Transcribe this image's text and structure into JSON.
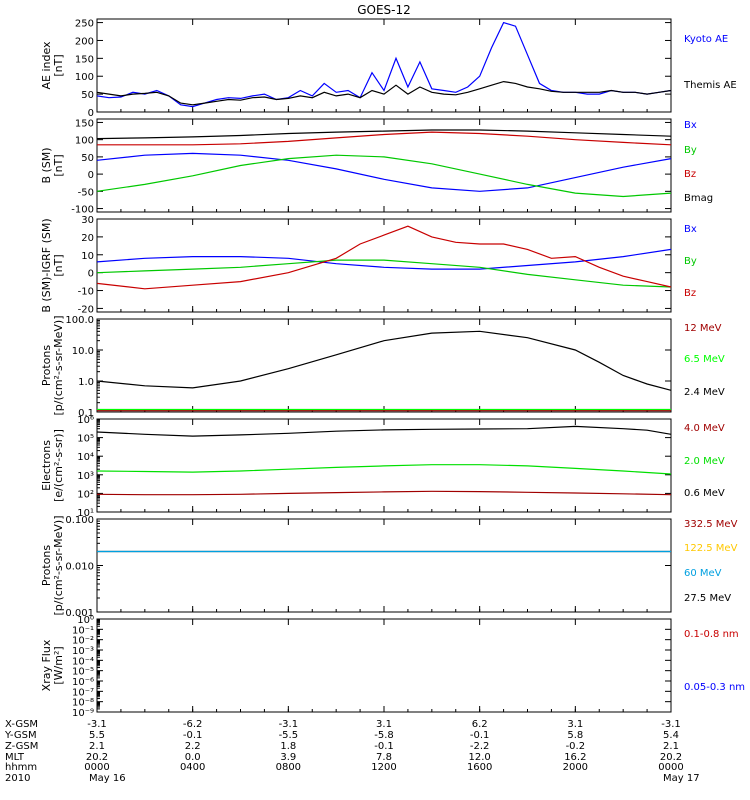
{
  "title": "GOES-12",
  "chart_data": [
    {
      "id": "ae",
      "type": "line",
      "ylabel": [
        "AE index",
        "[nT]"
      ],
      "yscale": "linear",
      "ylim": [
        0,
        260
      ],
      "yticks": [
        0,
        50,
        100,
        150,
        200,
        250
      ],
      "series": [
        {
          "name": "Kyoto AE",
          "color": "#0000ff",
          "x": [
            0,
            0.5,
            1,
            1.5,
            2,
            2.5,
            3,
            3.5,
            4,
            4.5,
            5,
            5.5,
            6,
            6.5,
            7,
            7.5,
            8,
            8.5,
            9,
            9.5,
            10,
            10.5,
            11,
            11.5,
            12,
            12.5,
            13,
            13.5,
            14,
            14.5,
            15,
            15.5,
            16,
            16.5,
            17,
            17.5,
            18,
            18.5,
            19,
            19.5,
            20,
            20.5,
            21,
            21.5,
            22,
            22.5,
            23,
            23.5,
            24
          ],
          "y": [
            45,
            40,
            42,
            55,
            50,
            60,
            45,
            20,
            15,
            25,
            35,
            40,
            38,
            45,
            50,
            35,
            40,
            60,
            45,
            80,
            55,
            60,
            40,
            110,
            60,
            150,
            70,
            140,
            65,
            60,
            55,
            70,
            100,
            180,
            250,
            240,
            160,
            80,
            60,
            55,
            55,
            50,
            50,
            60,
            55,
            55,
            50,
            55,
            60
          ]
        },
        {
          "name": "Themis AE",
          "color": "#000000",
          "x": [
            0,
            0.5,
            1,
            1.5,
            2,
            2.5,
            3,
            3.5,
            4,
            4.5,
            5,
            5.5,
            6,
            6.5,
            7,
            7.5,
            8,
            8.5,
            9,
            9.5,
            10,
            10.5,
            11,
            11.5,
            12,
            12.5,
            13,
            13.5,
            14,
            14.5,
            15,
            15.5,
            16,
            16.5,
            17,
            17.5,
            18,
            18.5,
            19,
            19.5,
            20,
            20.5,
            21,
            21.5,
            22,
            22.5,
            23,
            23.5,
            24
          ],
          "y": [
            55,
            50,
            45,
            50,
            52,
            55,
            45,
            25,
            20,
            25,
            30,
            35,
            33,
            40,
            42,
            35,
            38,
            45,
            40,
            55,
            45,
            50,
            40,
            60,
            50,
            75,
            50,
            70,
            55,
            50,
            48,
            55,
            65,
            75,
            85,
            80,
            70,
            65,
            58,
            55,
            55,
            55,
            55,
            60,
            55,
            55,
            50,
            55,
            60
          ]
        }
      ],
      "legend": [
        {
          "text": "Kyoto AE",
          "color": "#0000ff"
        },
        {
          "text": "Themis AE",
          "color": "#000000"
        }
      ]
    },
    {
      "id": "bsm",
      "type": "line",
      "ylabel": [
        "B (SM)",
        "[nT]"
      ],
      "yscale": "linear",
      "ylim": [
        -110,
        160
      ],
      "yticks": [
        -100,
        -50,
        0,
        50,
        100,
        150
      ],
      "series": [
        {
          "name": "Bx",
          "color": "#0000ff",
          "x": [
            0,
            2,
            4,
            6,
            8,
            10,
            12,
            14,
            16,
            18,
            20,
            22,
            24
          ],
          "y": [
            40,
            55,
            60,
            55,
            40,
            15,
            -15,
            -40,
            -50,
            -40,
            -10,
            20,
            45
          ]
        },
        {
          "name": "By",
          "color": "#00c800",
          "x": [
            0,
            2,
            4,
            6,
            8,
            10,
            12,
            14,
            16,
            18,
            20,
            22,
            24
          ],
          "y": [
            -50,
            -30,
            -5,
            25,
            45,
            55,
            50,
            30,
            0,
            -30,
            -55,
            -65,
            -55
          ]
        },
        {
          "name": "Bz",
          "color": "#c80000",
          "x": [
            0,
            2,
            4,
            6,
            8,
            10,
            12,
            14,
            16,
            18,
            20,
            22,
            24
          ],
          "y": [
            85,
            85,
            85,
            88,
            95,
            105,
            115,
            122,
            118,
            110,
            100,
            92,
            85
          ]
        },
        {
          "name": "Bmag",
          "color": "#000000",
          "x": [
            0,
            2,
            4,
            6,
            8,
            10,
            12,
            14,
            16,
            18,
            20,
            22,
            24
          ],
          "y": [
            103,
            105,
            108,
            112,
            118,
            122,
            125,
            128,
            128,
            125,
            120,
            115,
            110
          ]
        }
      ],
      "legend": [
        {
          "text": "Bx",
          "color": "#0000ff"
        },
        {
          "text": "By",
          "color": "#00c800"
        },
        {
          "text": "Bz",
          "color": "#c80000"
        },
        {
          "text": "Bmag",
          "color": "#000000"
        }
      ]
    },
    {
      "id": "bsmigrf",
      "type": "line",
      "ylabel": [
        "B (SM)-IGRF (SM)",
        "[nT]"
      ],
      "yscale": "linear",
      "ylim": [
        -22,
        30
      ],
      "yticks": [
        -20,
        -10,
        0,
        10,
        20,
        30
      ],
      "series": [
        {
          "name": "Bx",
          "color": "#0000ff",
          "x": [
            0,
            2,
            4,
            6,
            8,
            10,
            12,
            14,
            16,
            18,
            20,
            22,
            24
          ],
          "y": [
            6,
            8,
            9,
            9,
            8,
            5,
            3,
            2,
            2,
            4,
            6,
            9,
            13
          ]
        },
        {
          "name": "By",
          "color": "#00c800",
          "x": [
            0,
            2,
            4,
            6,
            8,
            10,
            12,
            14,
            16,
            18,
            20,
            22,
            24
          ],
          "y": [
            0,
            1,
            2,
            3,
            5,
            7,
            7,
            5,
            3,
            -1,
            -4,
            -7,
            -8
          ]
        },
        {
          "name": "Bz",
          "color": "#c80000",
          "x": [
            0,
            2,
            4,
            6,
            8,
            10,
            11,
            12,
            13,
            14,
            15,
            16,
            17,
            18,
            19,
            20,
            21,
            22,
            23,
            24
          ],
          "y": [
            -6,
            -9,
            -7,
            -5,
            0,
            8,
            16,
            21,
            26,
            20,
            17,
            16,
            16,
            13,
            8,
            9,
            3,
            -2,
            -5,
            -8
          ]
        }
      ],
      "legend": [
        {
          "text": "Bx",
          "color": "#0000ff"
        },
        {
          "text": "By",
          "color": "#00c800"
        },
        {
          "text": "Bz",
          "color": "#c80000"
        }
      ]
    },
    {
      "id": "protons_low",
      "type": "line",
      "ylabel": [
        "Protons",
        "[p/(cm²-s-sr-MeV)]"
      ],
      "yscale": "log",
      "ylim": [
        0.1,
        100
      ],
      "ytick_labels": [
        "0.1",
        "1.0",
        "10.0",
        "100.0"
      ],
      "yticks": [
        0.1,
        1,
        10,
        100
      ],
      "series": [
        {
          "name": "2.4 MeV",
          "color": "#000000",
          "x": [
            0,
            2,
            4,
            6,
            8,
            10,
            12,
            14,
            16,
            18,
            20,
            21,
            22,
            23,
            24
          ],
          "y": [
            1.0,
            0.7,
            0.6,
            1.0,
            2.5,
            7,
            20,
            35,
            40,
            25,
            10,
            4,
            1.5,
            0.8,
            0.5
          ]
        },
        {
          "name": "6.5 MeV",
          "color": "#00ff00",
          "x": [
            0,
            6,
            12,
            18,
            24
          ],
          "y": [
            0.12,
            0.12,
            0.12,
            0.12,
            0.12
          ]
        },
        {
          "name": "12 MeV",
          "color": "#a00000",
          "x": [
            0,
            6,
            12,
            18,
            24
          ],
          "y": [
            0.11,
            0.11,
            0.11,
            0.11,
            0.11
          ]
        }
      ],
      "legend": [
        {
          "text": "12 MeV",
          "color": "#a00000"
        },
        {
          "text": "6.5 MeV",
          "color": "#00ff00"
        },
        {
          "text": "2.4 MeV",
          "color": "#000000"
        }
      ]
    },
    {
      "id": "electrons",
      "type": "line",
      "ylabel": [
        "Electrons",
        "[e/(cm²-s-sr)]"
      ],
      "yscale": "log",
      "ylim": [
        10,
        1000000
      ],
      "ytick_labels": [
        "10¹",
        "10²",
        "10³",
        "10⁴",
        "10⁵",
        "10⁶"
      ],
      "yticks": [
        10,
        100,
        1000,
        10000,
        100000,
        1000000
      ],
      "series": [
        {
          "name": "0.6 MeV",
          "color": "#000000",
          "x": [
            0,
            2,
            4,
            6,
            8,
            10,
            12,
            14,
            16,
            18,
            20,
            22,
            23,
            24
          ],
          "y": [
            200000,
            150000,
            120000,
            140000,
            170000,
            220000,
            260000,
            280000,
            290000,
            300000,
            400000,
            300000,
            250000,
            150000
          ]
        },
        {
          "name": "2.0 MeV",
          "color": "#00e000",
          "x": [
            0,
            2,
            4,
            6,
            8,
            10,
            12,
            14,
            16,
            18,
            20,
            22,
            24
          ],
          "y": [
            1600,
            1500,
            1400,
            1600,
            2000,
            2500,
            3000,
            3500,
            3500,
            3000,
            2200,
            1600,
            1100
          ]
        },
        {
          "name": "4.0 MeV",
          "color": "#a00000",
          "x": [
            0,
            2,
            4,
            6,
            8,
            10,
            12,
            14,
            16,
            18,
            20,
            22,
            24
          ],
          "y": [
            90,
            85,
            85,
            90,
            100,
            110,
            120,
            130,
            125,
            115,
            105,
            95,
            85
          ]
        }
      ],
      "legend": [
        {
          "text": "4.0 MeV",
          "color": "#a00000"
        },
        {
          "text": "2.0 MeV",
          "color": "#00e000"
        },
        {
          "text": "0.6 MeV",
          "color": "#000000"
        }
      ]
    },
    {
      "id": "protons_high",
      "type": "line",
      "ylabel": [
        "Protons",
        "[p/(cm²-s-sr-MeV)]"
      ],
      "yscale": "log",
      "ylim": [
        0.001,
        0.1
      ],
      "ytick_labels": [
        "0.001",
        "0.010",
        "0.100"
      ],
      "yticks": [
        0.001,
        0.01,
        0.1
      ],
      "series": [
        {
          "name": "27.5 MeV",
          "color": "#000000",
          "x": [
            0,
            6,
            12,
            18,
            24
          ],
          "y": [
            0.02,
            0.02,
            0.02,
            0.02,
            0.02
          ]
        },
        {
          "name": "60 MeV",
          "color": "#00a0e0",
          "x": [
            0,
            6,
            12,
            18,
            24
          ],
          "y": [
            0.02,
            0.02,
            0.02,
            0.02,
            0.02
          ]
        }
      ],
      "legend": [
        {
          "text": "332.5 MeV",
          "color": "#a00000"
        },
        {
          "text": "122.5 MeV",
          "color": "#ffc800"
        },
        {
          "text": "60 MeV",
          "color": "#00a0e0"
        },
        {
          "text": "27.5 MeV",
          "color": "#000000"
        }
      ]
    },
    {
      "id": "xray",
      "type": "line",
      "ylabel": [
        "Xray Flux",
        "[W/m²]"
      ],
      "yscale": "log",
      "ylim": [
        1e-09,
        1
      ],
      "ytick_labels": [
        "10⁻⁹",
        "10⁻⁸",
        "10⁻⁷",
        "10⁻⁶",
        "10⁻⁵",
        "10⁻⁴",
        "10⁻³",
        "10⁻²",
        "10⁻¹",
        "10⁰"
      ],
      "yticks": [
        1e-09,
        1e-08,
        1e-07,
        1e-06,
        1e-05,
        0.0001,
        0.001,
        0.01,
        0.1,
        1
      ],
      "series": [],
      "legend": [
        {
          "text": "0.1-0.8 nm",
          "color": "#c80000"
        },
        {
          "text": "0.05-0.3 nm",
          "color": "#0000ff"
        }
      ]
    }
  ],
  "x_axis": {
    "xlim": [
      0,
      24
    ],
    "major_ticks": [
      0,
      4,
      8,
      12,
      16,
      20,
      24
    ],
    "row_labels": [
      "X-GSM",
      "Y-GSM",
      "Z-GSM",
      "MLT",
      "hhmm",
      "2010"
    ],
    "columns": [
      {
        "x": 0,
        "values": [
          "-3.1",
          "5.5",
          "2.1",
          "20.2",
          "0000",
          "May 16"
        ]
      },
      {
        "x": 4,
        "values": [
          "-6.2",
          "-0.1",
          "2.2",
          "0.0",
          "0400",
          ""
        ]
      },
      {
        "x": 8,
        "values": [
          "-3.1",
          "-5.5",
          "1.8",
          "3.9",
          "0800",
          ""
        ]
      },
      {
        "x": 12,
        "values": [
          "3.1",
          "-5.8",
          "-0.1",
          "7.8",
          "1200",
          ""
        ]
      },
      {
        "x": 16,
        "values": [
          "6.2",
          "-0.1",
          "-2.2",
          "12.0",
          "1600",
          ""
        ]
      },
      {
        "x": 20,
        "values": [
          "3.1",
          "5.8",
          "-0.2",
          "16.2",
          "2000",
          ""
        ]
      },
      {
        "x": 24,
        "values": [
          "-3.1",
          "5.4",
          "2.1",
          "20.2",
          "0000",
          "May 17"
        ]
      }
    ]
  }
}
